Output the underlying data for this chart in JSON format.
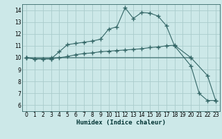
{
  "xlabel": "Humidex (Indice chaleur)",
  "bg_color": "#cce8e8",
  "grid_color": "#aacccc",
  "line_color": "#336666",
  "xlim": [
    -0.5,
    23.5
  ],
  "ylim": [
    5.5,
    14.5
  ],
  "xticks": [
    0,
    1,
    2,
    3,
    4,
    5,
    6,
    7,
    8,
    9,
    10,
    11,
    12,
    13,
    14,
    15,
    16,
    17,
    18,
    19,
    20,
    21,
    22,
    23
  ],
  "yticks": [
    6,
    7,
    8,
    9,
    10,
    11,
    12,
    13,
    14
  ],
  "curve1_x": [
    0,
    1,
    2,
    3,
    4,
    5,
    6,
    7,
    8,
    9,
    10,
    11,
    12,
    13,
    14,
    15,
    16,
    17,
    18,
    20,
    21,
    22,
    23
  ],
  "curve1_y": [
    10,
    9.9,
    9.9,
    9.9,
    10.5,
    11.1,
    11.2,
    11.3,
    11.4,
    11.55,
    12.4,
    12.6,
    14.2,
    13.3,
    13.8,
    13.75,
    13.5,
    12.7,
    11.0,
    9.3,
    7.0,
    6.4,
    6.4
  ],
  "curve2_x": [
    0,
    1,
    2,
    3,
    4,
    5,
    6,
    7,
    8,
    9,
    10,
    11,
    12,
    13,
    14,
    15,
    16,
    17,
    18,
    20
  ],
  "curve2_y": [
    10,
    9.9,
    9.9,
    9.9,
    10.0,
    10.1,
    10.25,
    10.35,
    10.4,
    10.5,
    10.55,
    10.6,
    10.65,
    10.7,
    10.75,
    10.85,
    10.9,
    11.0,
    11.05,
    10.0
  ],
  "curve3_x": [
    0,
    3,
    20,
    22,
    23
  ],
  "curve3_y": [
    10,
    10,
    10,
    8.5,
    6.4
  ],
  "markersize": 2.5
}
